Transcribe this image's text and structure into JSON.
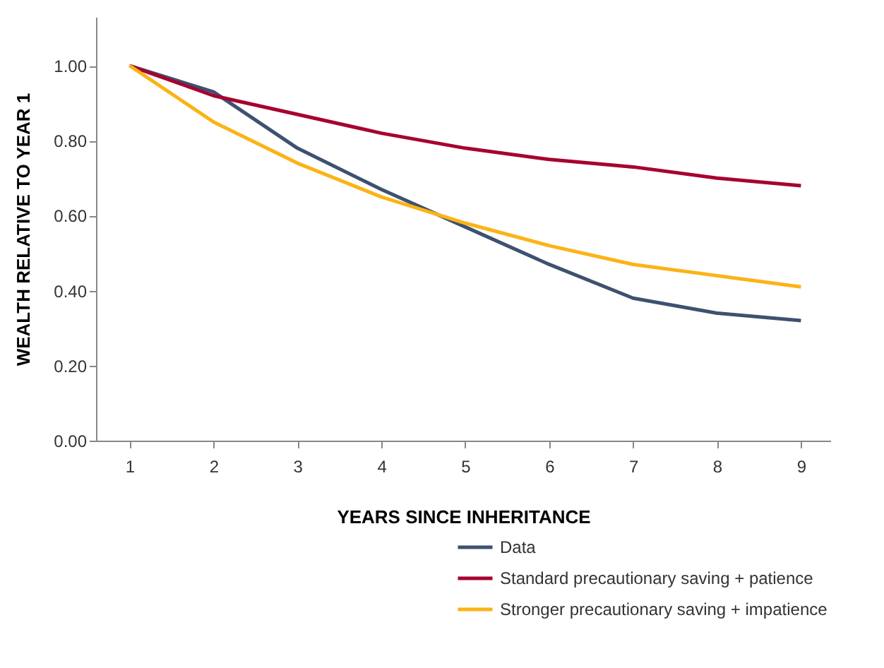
{
  "chart_data": {
    "type": "line",
    "xlabel": "YEARS SINCE INHERITANCE",
    "ylabel": "WEALTH RELATIVE TO YEAR 1",
    "x": [
      1,
      2,
      3,
      4,
      5,
      6,
      7,
      8,
      9
    ],
    "xlim": [
      0.6,
      9.35
    ],
    "xticks": [
      1,
      2,
      3,
      4,
      5,
      6,
      7,
      8,
      9
    ],
    "ylim": [
      0,
      1.13
    ],
    "yticks": [
      {
        "value": 0,
        "label": "0.00"
      },
      {
        "value": 0.2,
        "label": "0.20"
      },
      {
        "value": 0.4,
        "label": "0.40"
      },
      {
        "value": 0.6,
        "label": "0.60"
      },
      {
        "value": 0.8,
        "label": "0.80"
      },
      {
        "value": 1,
        "label": "1.00"
      }
    ],
    "grid": false,
    "legend": "bottom right",
    "marker": "none",
    "line_style": "solid",
    "series": [
      {
        "name": "Data",
        "color": "#3d5170",
        "values": [
          1.0,
          0.93,
          0.78,
          0.67,
          0.57,
          0.47,
          0.38,
          0.34,
          0.32
        ]
      },
      {
        "name": "Standard precautionary saving + patience",
        "color": "#a6032f",
        "values": [
          1.0,
          0.92,
          0.87,
          0.82,
          0.78,
          0.75,
          0.73,
          0.7,
          0.68
        ]
      },
      {
        "name": "Stronger precautionary saving + impatience",
        "color": "#fbb316",
        "values": [
          1.0,
          0.85,
          0.74,
          0.65,
          0.58,
          0.52,
          0.47,
          0.44,
          0.41
        ]
      }
    ]
  }
}
